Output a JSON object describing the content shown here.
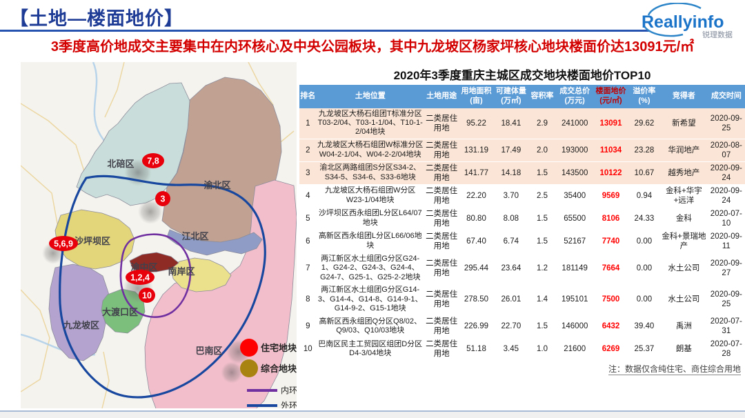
{
  "page": {
    "title": "【土地—楼面地价】",
    "subtitle": "3季度高价地成交主要集中在内环核心及中央公园板块，其中九龙坡区杨家坪核心地块楼面价达13091元/㎡",
    "footnote": "注：数据仅含纯住宅、商住综合用地"
  },
  "logo": {
    "text": "Reallyinfo",
    "subtext": "锐理数据"
  },
  "colors": {
    "title_blue": "#1E3C96",
    "subtitle_red": "#D30000",
    "header_blue": "#5B9BD5",
    "highlight_pink": "#FBE5D6",
    "price_red": "#FF0000",
    "marker_red": "#E8000B",
    "inner_ring_purple": "#7030A0",
    "outer_ring_blue": "#17479E",
    "logo_blue": "#1C74C9"
  },
  "map": {
    "districts": [
      "北碚区",
      "渝北区",
      "江北区",
      "沙坪坝区",
      "渝中区",
      "南岸区",
      "大渡口区",
      "九龙坡区",
      "巴南区"
    ],
    "markers": [
      {
        "label": "7,8"
      },
      {
        "label": "3"
      },
      {
        "label": "5,6,9"
      },
      {
        "label": "1,2,4"
      },
      {
        "label": "10"
      }
    ],
    "legend": [
      {
        "label": "住宅地块",
        "type": "circle",
        "color": "#FF0000"
      },
      {
        "label": "综合地块",
        "type": "circle",
        "color": "#A98312"
      },
      {
        "label": "内环",
        "type": "line",
        "color": "#7030A0"
      },
      {
        "label": "外环",
        "type": "line",
        "color": "#17479E"
      }
    ]
  },
  "table": {
    "title": "2020年3季度重庆主城区成交地块楼面地价TOP10",
    "headers": [
      "排名",
      "土地位置",
      "土地用途",
      "用地面积\n(亩)",
      "可建体量\n(万㎡)",
      "容积率",
      "成交总价\n(万元)",
      "楼面地价\n(元/㎡)",
      "溢价率\n(%)",
      "竞得者",
      "成交时间"
    ],
    "rows": [
      [
        "1",
        "九龙坡区大杨石组团T标准分区T03-2/04、T03-1-1/04、T10-1-2/04地块",
        "二类居住用地",
        "95.22",
        "18.41",
        "2.9",
        "241000",
        "13091",
        "29.62",
        "新希望",
        "2020-09-25"
      ],
      [
        "2",
        "九龙坡区大杨石组团W标准分区W04-2-1/04、W04-2-2/04地块",
        "二类居住用地",
        "131.19",
        "17.49",
        "2.0",
        "193000",
        "11034",
        "23.28",
        "华润地产",
        "2020-08-07"
      ],
      [
        "3",
        "渝北区两路组团S分区S34-2、S34-5、S34-6、S33-6地块",
        "二类居住用地",
        "141.77",
        "14.18",
        "1.5",
        "143500",
        "10122",
        "10.67",
        "越秀地产",
        "2020-09-24"
      ],
      [
        "4",
        "九龙坡区大杨石组团W分区W23-1/04地块",
        "二类居住用地",
        "22.20",
        "3.70",
        "2.5",
        "35400",
        "9569",
        "0.94",
        "金科+华宇+远洋",
        "2020-09-24"
      ],
      [
        "5",
        "沙坪坝区西永组团L分区L64/07地块",
        "二类居住用地",
        "80.80",
        "8.08",
        "1.5",
        "65500",
        "8106",
        "24.33",
        "金科",
        "2020-07-10"
      ],
      [
        "6",
        "高新区西永组团L分区L66/06地块",
        "二类居住用地",
        "67.40",
        "6.74",
        "1.5",
        "52167",
        "7740",
        "0.00",
        "金科+景瑞地产",
        "2020-09-11"
      ],
      [
        "7",
        "两江新区水土组团G分区G24-1、G24-2、G24-3、G24-4、G24-7、G25-1、G25-2-2地块",
        "二类居住用地",
        "295.44",
        "23.64",
        "1.2",
        "181149",
        "7664",
        "0.00",
        "水土公司",
        "2020-09-27"
      ],
      [
        "8",
        "两江新区水土组团G分区G14-3、G14-4、G14-8、G14-9-1、G14-9-2、G15-1地块",
        "二类居住用地",
        "278.50",
        "26.01",
        "1.4",
        "195101",
        "7500",
        "0.00",
        "水土公司",
        "2020-09-25"
      ],
      [
        "9",
        "高新区西永组团Q分区Q8/02、Q9/03、Q10/03地块",
        "二类居住用地",
        "226.99",
        "22.70",
        "1.5",
        "146000",
        "6432",
        "39.40",
        "禹洲",
        "2020-07-31"
      ],
      [
        "10",
        "巴南区民主工贸园区组团D分区D4-3/04地块",
        "二类居住用地",
        "51.18",
        "3.45",
        "1.0",
        "21600",
        "6269",
        "25.37",
        "朗基",
        "2020-07-28"
      ]
    ]
  }
}
